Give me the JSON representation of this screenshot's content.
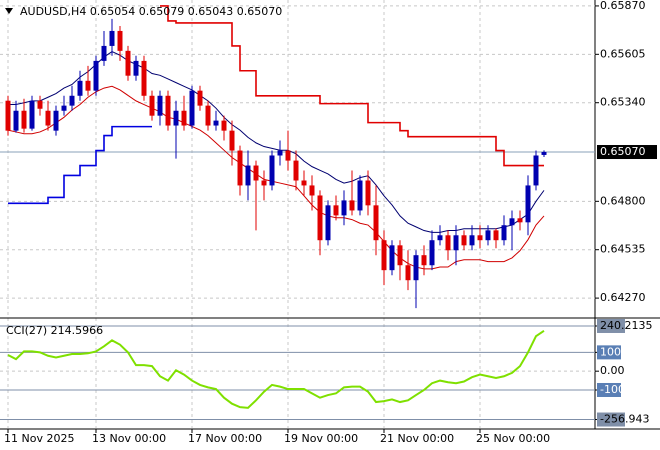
{
  "chart_data": [
    {
      "type": "candlestick",
      "header": "AUDUSD,H4  0.65054 0.65079 0.65043 0.65070",
      "categories": [
        "11 Nov 2025",
        null,
        null,
        null,
        null,
        null,
        null,
        null,
        null,
        null,
        null,
        "13 Nov 00:00",
        null,
        null,
        null,
        null,
        null,
        null,
        null,
        null,
        null,
        null,
        null,
        "17 Nov 00:00",
        null,
        null,
        null,
        null,
        null,
        null,
        null,
        null,
        null,
        null,
        null,
        "19 Nov 00:00",
        null,
        null,
        null,
        null,
        null,
        null,
        null,
        null,
        null,
        null,
        null,
        "21 Nov 00:00",
        null,
        null,
        null,
        null,
        null,
        null,
        null,
        null,
        null,
        null,
        null,
        "25 Nov 00:00",
        null,
        null,
        null,
        null,
        null,
        null,
        null,
        null
      ],
      "open": [
        0.65351,
        0.65187,
        0.65296,
        0.65198,
        0.65351,
        0.65296,
        0.65187,
        0.65296,
        0.65324,
        0.65378,
        0.6546,
        0.65406,
        0.65569,
        0.65651,
        0.65733,
        0.65624,
        0.65488,
        0.65569,
        0.65378,
        0.65269,
        0.65378,
        0.65215,
        0.65296,
        0.65215,
        0.65406,
        0.65324,
        0.65215,
        0.65242,
        0.65187,
        0.65078,
        0.64887,
        0.64996,
        0.64914,
        0.64887,
        0.65051,
        0.65078,
        0.65023,
        0.64914,
        0.64887,
        0.64832,
        0.64587,
        0.64778,
        0.64723,
        0.64805,
        0.6475,
        0.64914,
        0.64778,
        0.64587,
        0.64423,
        0.64559,
        0.6445,
        0.64368,
        0.64505,
        0.6445,
        0.64587,
        0.64614,
        0.64532,
        0.64614,
        0.64559,
        0.64614,
        0.64587,
        0.64641,
        0.64587,
        0.64669,
        0.64707,
        0.64685,
        0.64887,
        0.65054
      ],
      "high": [
        0.65378,
        0.65351,
        0.65362,
        0.65378,
        0.65378,
        0.65351,
        0.65324,
        0.65378,
        0.65433,
        0.65515,
        0.65542,
        0.65597,
        0.65733,
        0.65799,
        0.6576,
        0.65651,
        0.65597,
        0.65597,
        0.65406,
        0.65406,
        0.65406,
        0.65351,
        0.65378,
        0.65433,
        0.65433,
        0.65351,
        0.65296,
        0.65269,
        0.65242,
        0.65105,
        0.65078,
        0.65023,
        0.64969,
        0.65078,
        0.65133,
        0.65187,
        0.65078,
        0.64969,
        0.64942,
        0.6486,
        0.64805,
        0.64832,
        0.6486,
        0.64969,
        0.64942,
        0.64969,
        0.64887,
        0.64641,
        0.64587,
        0.64587,
        0.64532,
        0.64532,
        0.64559,
        0.64641,
        0.64669,
        0.64641,
        0.64669,
        0.64641,
        0.64669,
        0.64669,
        0.64669,
        0.64652,
        0.64723,
        0.6475,
        0.6475,
        0.64942,
        0.65078,
        0.65079
      ],
      "low": [
        0.6516,
        0.65176,
        0.65176,
        0.65187,
        0.65269,
        0.65187,
        0.6516,
        0.65269,
        0.65296,
        0.65351,
        0.65378,
        0.65378,
        0.65542,
        0.65597,
        0.65569,
        0.6546,
        0.6546,
        0.65351,
        0.65242,
        0.65215,
        0.65187,
        0.65034,
        0.65187,
        0.65198,
        0.65296,
        0.65187,
        0.65187,
        0.65133,
        0.64996,
        0.64832,
        0.64805,
        0.64641,
        0.64805,
        0.6486,
        0.64996,
        0.64969,
        0.6486,
        0.64832,
        0.6475,
        0.64505,
        0.64559,
        0.64696,
        0.64669,
        0.64723,
        0.64723,
        0.64723,
        0.64505,
        0.64341,
        0.64395,
        0.64368,
        0.64314,
        0.64215,
        0.64395,
        0.64423,
        0.64559,
        0.64477,
        0.6445,
        0.64532,
        0.64532,
        0.64543,
        0.64559,
        0.64543,
        0.64559,
        0.64532,
        0.64641,
        0.64614,
        0.6486,
        0.65043
      ],
      "close": [
        0.65187,
        0.65296,
        0.65198,
        0.65351,
        0.65307,
        0.65215,
        0.65296,
        0.65324,
        0.65378,
        0.6546,
        0.65406,
        0.65569,
        0.65651,
        0.65733,
        0.65624,
        0.65488,
        0.65569,
        0.65378,
        0.65269,
        0.65378,
        0.65215,
        0.65296,
        0.65215,
        0.65406,
        0.65324,
        0.65215,
        0.65242,
        0.65187,
        0.65078,
        0.64887,
        0.64996,
        0.64914,
        0.64887,
        0.65051,
        0.65078,
        0.65023,
        0.64914,
        0.64887,
        0.64832,
        0.64587,
        0.64778,
        0.64723,
        0.64805,
        0.6475,
        0.64914,
        0.64778,
        0.64587,
        0.64423,
        0.64559,
        0.6445,
        0.64368,
        0.64505,
        0.6445,
        0.64587,
        0.64614,
        0.64532,
        0.64614,
        0.64559,
        0.64614,
        0.64587,
        0.64641,
        0.64587,
        0.64669,
        0.64707,
        0.64685,
        0.64887,
        0.65051,
        0.6507
      ],
      "up_color": "#0000b0",
      "down_color": "#e00000",
      "overlays": [
        {
          "color": "#e00000",
          "width": 1.6,
          "step": true,
          "values": [
            null,
            null,
            null,
            null,
            null,
            null,
            null,
            null,
            null,
            null,
            null,
            null,
            null,
            null,
            null,
            null,
            null,
            null,
            null,
            0.6587,
            0.65788,
            0.65777,
            0.65777,
            0.65777,
            0.65777,
            0.65777,
            0.65777,
            0.65777,
            0.65651,
            0.65515,
            0.65515,
            0.65378,
            0.65378,
            0.65378,
            0.65378,
            0.65378,
            0.65378,
            0.65378,
            0.65378,
            0.65335,
            0.65335,
            0.65335,
            0.65335,
            0.65335,
            0.65335,
            0.65231,
            0.65231,
            0.65231,
            0.65231,
            0.65187,
            0.65154,
            0.65154,
            0.65154,
            0.65154,
            0.65154,
            0.65154,
            0.65154,
            0.65154,
            0.65154,
            0.65154,
            0.65154,
            0.65078,
            0.64996,
            0.64996,
            0.64996,
            0.64996,
            0.64996,
            0.64996
          ]
        },
        {
          "color": "#0000e0",
          "width": 1.6,
          "step": true,
          "values": [
            0.64789,
            0.64789,
            0.64789,
            0.64789,
            0.64789,
            0.64821,
            0.64821,
            0.64942,
            0.64942,
            0.64996,
            0.64996,
            0.65078,
            0.6516,
            0.65209,
            0.65209,
            0.65209,
            0.65209,
            0.65209,
            0.65209,
            null,
            null,
            null,
            null,
            null,
            null,
            null,
            null,
            null,
            null,
            null,
            null,
            null,
            null,
            null,
            null,
            null,
            null,
            null,
            null,
            null,
            null,
            null,
            null,
            null,
            null,
            null,
            null,
            null,
            null,
            null,
            null,
            null,
            null,
            null,
            null,
            null,
            null,
            null,
            null,
            null,
            null,
            null,
            null,
            null,
            null,
            null,
            null,
            null
          ]
        },
        {
          "color": "#000070",
          "width": 1,
          "step": false,
          "values": [
            0.6533,
            0.6533,
            0.6534,
            0.6535,
            0.6535,
            0.6537,
            0.6539,
            0.6542,
            0.6544,
            0.6548,
            0.6551,
            0.6555,
            0.6559,
            0.6562,
            0.656,
            0.6557,
            0.6555,
            0.6553,
            0.655,
            0.6549,
            0.6547,
            0.6545,
            0.6543,
            0.6541,
            0.6538,
            0.6535,
            0.6531,
            0.6526,
            0.6522,
            0.6519,
            0.6515,
            0.6512,
            0.651,
            0.6509,
            0.6508,
            0.6508,
            0.6506,
            0.6502,
            0.6499,
            0.6497,
            0.6495,
            0.6492,
            0.649,
            0.6491,
            0.6493,
            0.6494,
            0.6489,
            0.6483,
            0.6478,
            0.6472,
            0.6468,
            0.6466,
            0.6464,
            0.6463,
            0.6463,
            0.6464,
            0.6464,
            0.6465,
            0.6465,
            0.6465,
            0.6465,
            0.6465,
            0.6466,
            0.6467,
            0.647,
            0.6473,
            0.648,
            0.6486
          ]
        },
        {
          "color": "#d00000",
          "width": 1,
          "step": false,
          "values": [
            0.6519,
            0.6518,
            0.6517,
            0.6517,
            0.6518,
            0.652,
            0.6523,
            0.6526,
            0.653,
            0.6533,
            0.6537,
            0.654,
            0.6542,
            0.6543,
            0.6541,
            0.6538,
            0.6535,
            0.6533,
            0.6531,
            0.6529,
            0.6526,
            0.6525,
            0.6523,
            0.6521,
            0.6519,
            0.6516,
            0.6512,
            0.6508,
            0.6504,
            0.6501,
            0.6498,
            0.6495,
            0.6492,
            0.6491,
            0.649,
            0.6489,
            0.6488,
            0.6483,
            0.6478,
            0.6474,
            0.6472,
            0.6471,
            0.6471,
            0.647,
            0.6468,
            0.6467,
            0.6463,
            0.6458,
            0.6453,
            0.6449,
            0.6446,
            0.6444,
            0.6443,
            0.6443,
            0.6444,
            0.6444,
            0.6447,
            0.6448,
            0.6448,
            0.6448,
            0.6447,
            0.6447,
            0.6447,
            0.6449,
            0.6453,
            0.6459,
            0.6467,
            0.6472
          ]
        }
      ],
      "ylim": [
        0.64172,
        0.65897
      ],
      "yticks": [
        {
          "value": 0.6587,
          "label": "0.65870"
        },
        {
          "value": 0.65605,
          "label": "0.65605"
        },
        {
          "value": 0.6534,
          "label": "0.65340"
        },
        {
          "value": 0.648,
          "label": "0.64800"
        },
        {
          "value": 0.64535,
          "label": "0.64535"
        },
        {
          "value": 0.6427,
          "label": "0.64270"
        }
      ],
      "current_price": {
        "value": 0.6507,
        "label": "0.65070"
      },
      "grid": true
    },
    {
      "type": "line",
      "title": "CCI(27) 214.5966",
      "series": [
        {
          "color": "#7fe000",
          "values": [
            86,
            64,
            105,
            105,
            100,
            82,
            73,
            82,
            91,
            91,
            95,
            105,
            132,
            164,
            141,
            100,
            32,
            32,
            27,
            -27,
            -50,
            5,
            -18,
            -50,
            -73,
            -86,
            -95,
            -141,
            -173,
            -191,
            -195,
            -155,
            -109,
            -73,
            -82,
            -95,
            -95,
            -95,
            -118,
            -141,
            -127,
            -118,
            -86,
            -82,
            -82,
            -109,
            -164,
            -159,
            -150,
            -164,
            -155,
            -127,
            -100,
            -64,
            -50,
            -59,
            -64,
            -55,
            -32,
            -18,
            -27,
            -36,
            -27,
            -9,
            27,
            100,
            186,
            214.5966
          ]
        }
      ],
      "ylim": [
        -302,
        272
      ],
      "yticks": [
        240.2135,
        100,
        {
          "value": 0,
          "label": "0.00"
        },
        -100,
        -256.943
      ]
    }
  ]
}
